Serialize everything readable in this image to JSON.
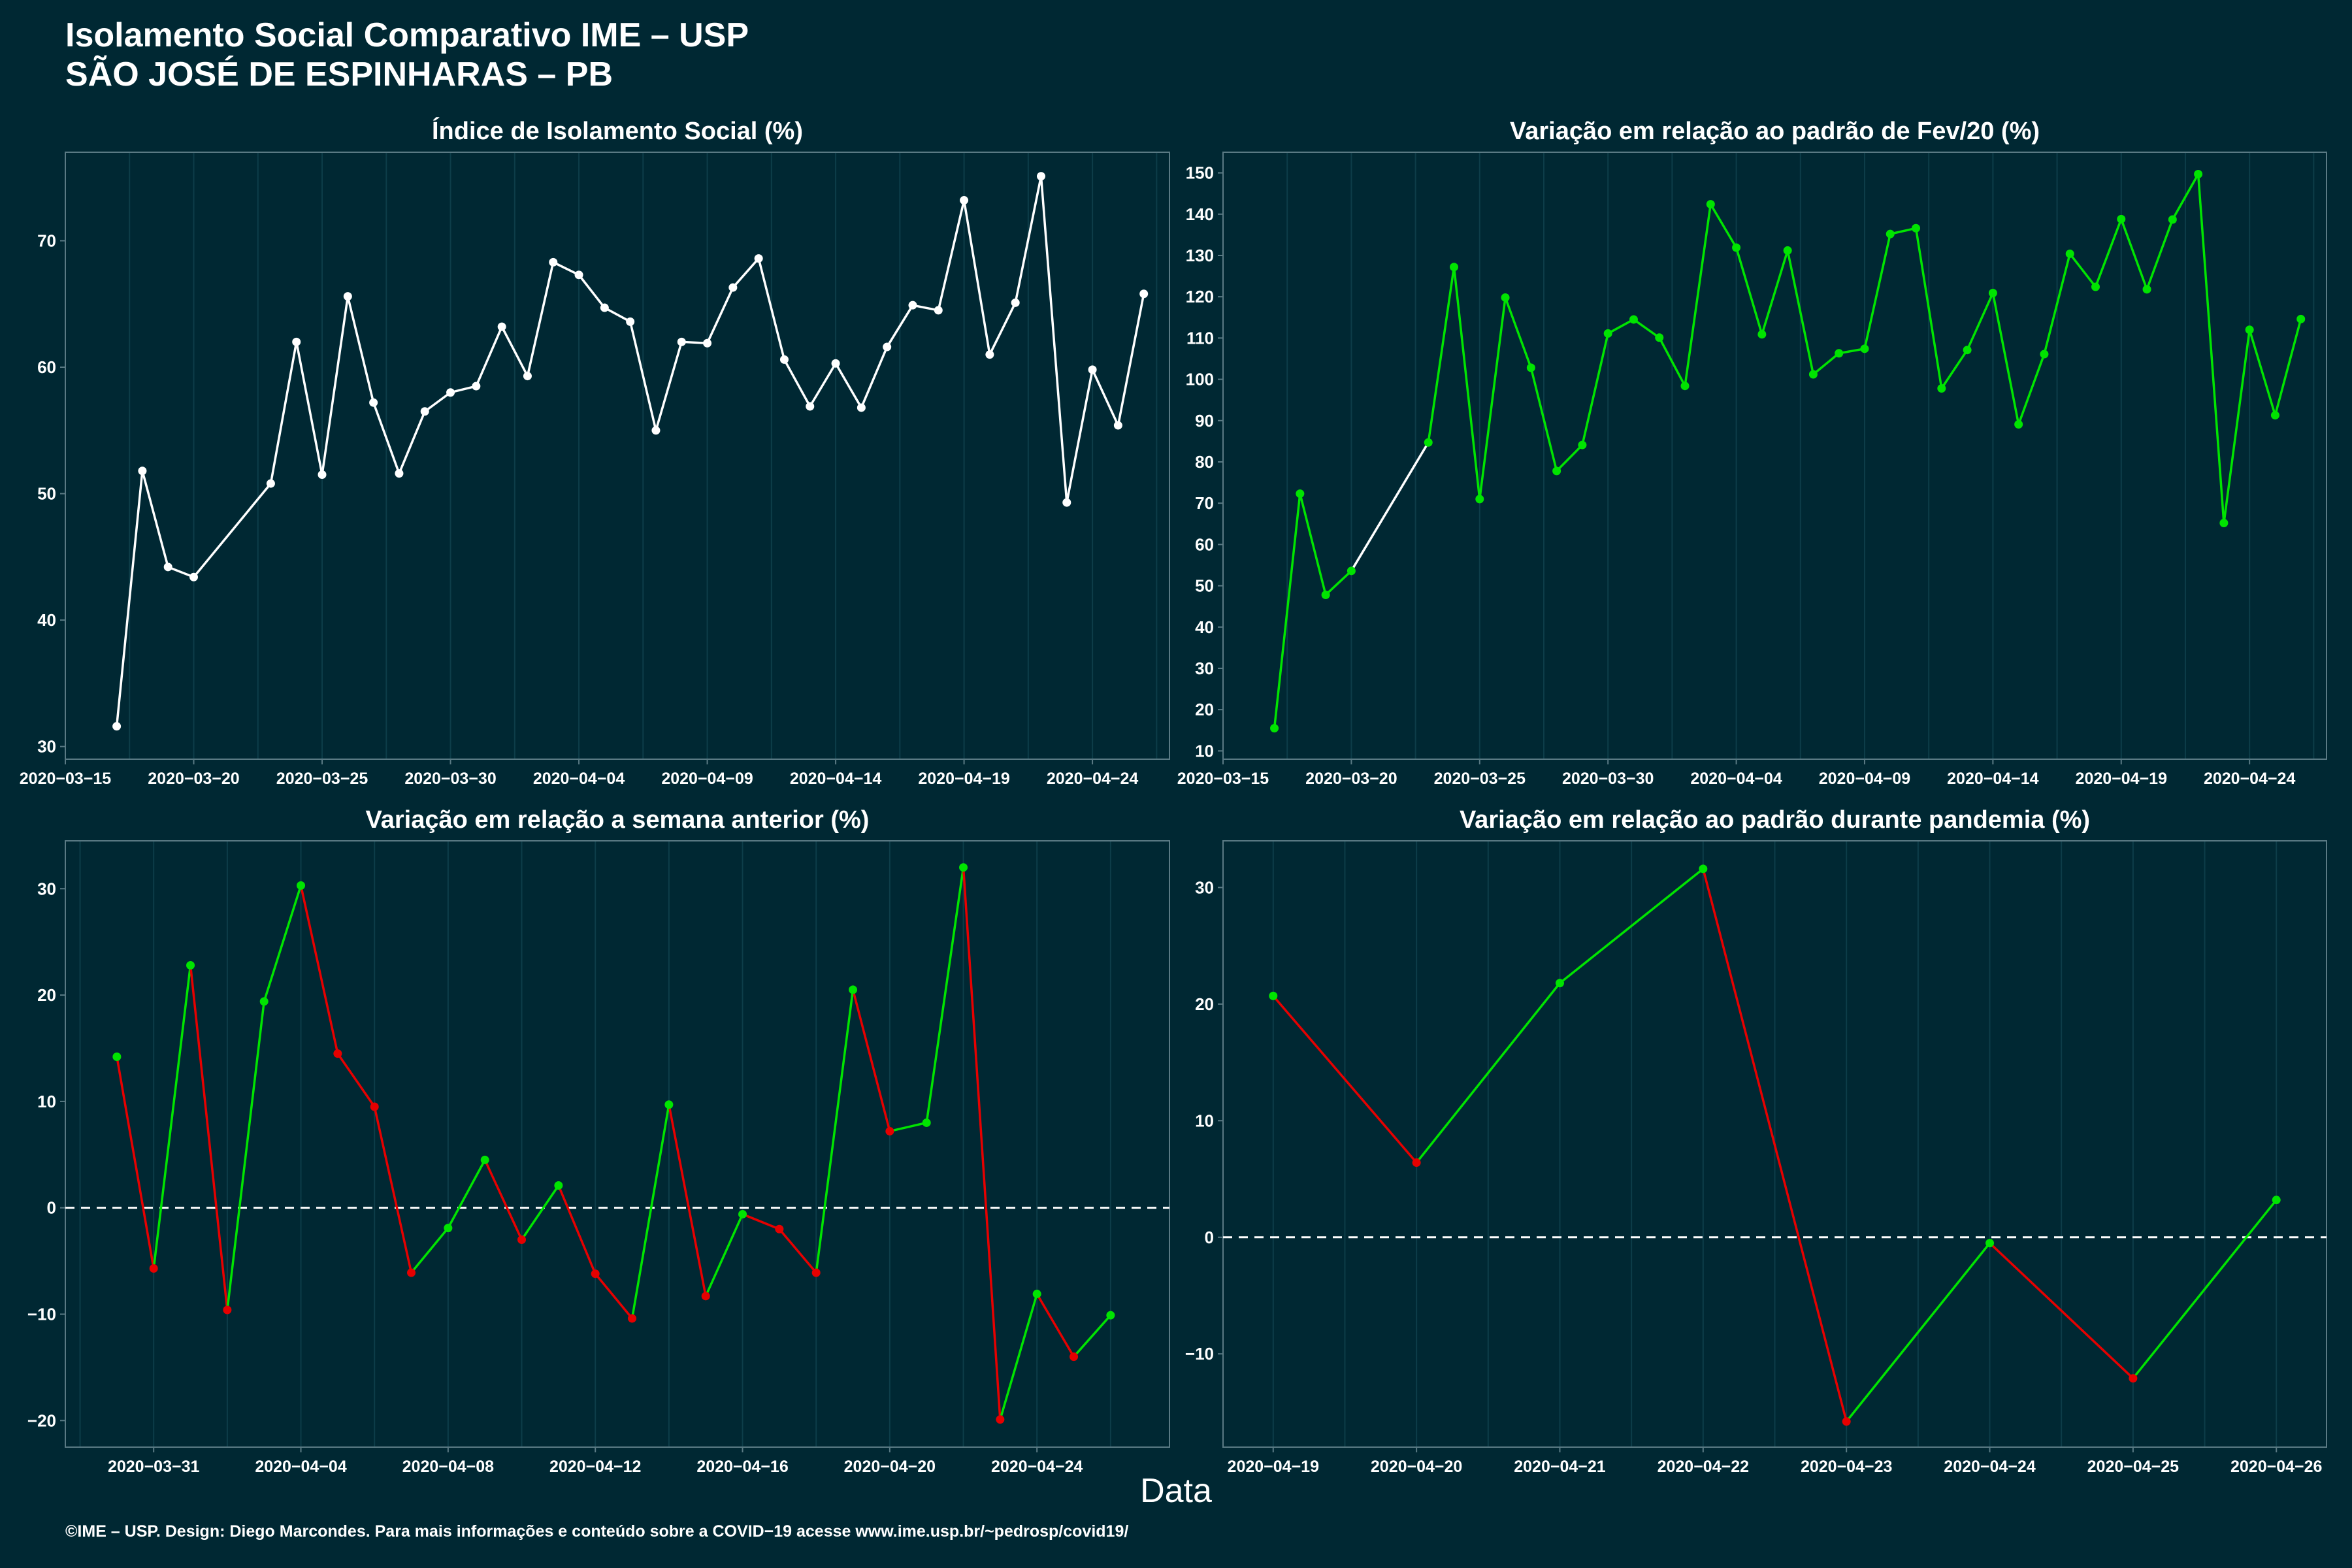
{
  "title": {
    "line1": "Isolamento Social Comparativo IME – USP",
    "line2": "SÃO JOSÉ DE ESPINHARAS – PB"
  },
  "x_axis_title": "Data",
  "footer": "©IME – USP. Design: Diego Marcondes. Para mais informações e conteúdo sobre a COVID−19 acesse www.ime.usp.br/~pedrosp/covid19/",
  "colors": {
    "background": "#002833",
    "panel_border": "#5a7a84",
    "gridline": "#0d3d49",
    "text": "#ffffff",
    "white_series": "#ffffff",
    "positive": "#00e400",
    "negative": "#e60000",
    "zero_line": "#ffffff"
  },
  "chart_data": [
    {
      "type": "line",
      "title": "Índice de Isolamento Social (%)",
      "color_mode": "single",
      "color": "#ffffff",
      "x_type": "date",
      "xlim": [
        "2020-03-15",
        "2020-04-27"
      ],
      "ylim": [
        29,
        77
      ],
      "x_ticks": [
        "2020-03-15",
        "2020-03-20",
        "2020-03-25",
        "2020-03-30",
        "2020-04-04",
        "2020-04-09",
        "2020-04-14",
        "2020-04-19",
        "2020-04-24"
      ],
      "y_ticks": [
        30,
        40,
        50,
        60,
        70
      ],
      "points": [
        {
          "x": "2020-03-17",
          "y": 31.6
        },
        {
          "x": "2020-03-18",
          "y": 51.8
        },
        {
          "x": "2020-03-19",
          "y": 44.2
        },
        {
          "x": "2020-03-20",
          "y": 43.4
        },
        {
          "x": "2020-03-23",
          "y": 50.8
        },
        {
          "x": "2020-03-24",
          "y": 62.0
        },
        {
          "x": "2020-03-25",
          "y": 51.5
        },
        {
          "x": "2020-03-26",
          "y": 65.6
        },
        {
          "x": "2020-03-27",
          "y": 57.2
        },
        {
          "x": "2020-03-28",
          "y": 51.6
        },
        {
          "x": "2020-03-29",
          "y": 56.5
        },
        {
          "x": "2020-03-30",
          "y": 58.0
        },
        {
          "x": "2020-03-31",
          "y": 58.5
        },
        {
          "x": "2020-04-01",
          "y": 63.2
        },
        {
          "x": "2020-04-02",
          "y": 59.3
        },
        {
          "x": "2020-04-03",
          "y": 68.3
        },
        {
          "x": "2020-04-04",
          "y": 67.3
        },
        {
          "x": "2020-04-05",
          "y": 64.7
        },
        {
          "x": "2020-04-06",
          "y": 63.6
        },
        {
          "x": "2020-04-07",
          "y": 55.0
        },
        {
          "x": "2020-04-08",
          "y": 62.0
        },
        {
          "x": "2020-04-09",
          "y": 61.9
        },
        {
          "x": "2020-04-10",
          "y": 66.3
        },
        {
          "x": "2020-04-11",
          "y": 68.6
        },
        {
          "x": "2020-04-12",
          "y": 60.6
        },
        {
          "x": "2020-04-13",
          "y": 56.9
        },
        {
          "x": "2020-04-14",
          "y": 60.3
        },
        {
          "x": "2020-04-15",
          "y": 56.8
        },
        {
          "x": "2020-04-16",
          "y": 61.6
        },
        {
          "x": "2020-04-17",
          "y": 64.9
        },
        {
          "x": "2020-04-18",
          "y": 64.5
        },
        {
          "x": "2020-04-19",
          "y": 73.2
        },
        {
          "x": "2020-04-20",
          "y": 61.0
        },
        {
          "x": "2020-04-21",
          "y": 65.1
        },
        {
          "x": "2020-04-22",
          "y": 75.1
        },
        {
          "x": "2020-04-23",
          "y": 49.3
        },
        {
          "x": "2020-04-24",
          "y": 59.8
        },
        {
          "x": "2020-04-25",
          "y": 55.4
        },
        {
          "x": "2020-04-26",
          "y": 65.8
        }
      ]
    },
    {
      "type": "line",
      "title": "Variação em relação ao padrão de Fev/20 (%)",
      "color_mode": "green_with_white_gap",
      "color": "#00e400",
      "gap_color": "#ffffff",
      "x_type": "date",
      "xlim": [
        "2020-03-15",
        "2020-04-27"
      ],
      "ylim": [
        8,
        155
      ],
      "x_ticks": [
        "2020-03-15",
        "2020-03-20",
        "2020-03-25",
        "2020-03-30",
        "2020-04-04",
        "2020-04-09",
        "2020-04-14",
        "2020-04-19",
        "2020-04-24"
      ],
      "y_ticks": [
        10,
        20,
        30,
        40,
        50,
        60,
        70,
        80,
        90,
        100,
        110,
        120,
        130,
        140,
        150
      ],
      "points": [
        {
          "x": "2020-03-17",
          "y": 15.5
        },
        {
          "x": "2020-03-18",
          "y": 72.3
        },
        {
          "x": "2020-03-19",
          "y": 47.8
        },
        {
          "x": "2020-03-20",
          "y": 53.6
        },
        {
          "x": "2020-03-23",
          "y": 84.7
        },
        {
          "x": "2020-03-24",
          "y": 127.2
        },
        {
          "x": "2020-03-25",
          "y": 71.0
        },
        {
          "x": "2020-03-26",
          "y": 119.8
        },
        {
          "x": "2020-03-27",
          "y": 102.8
        },
        {
          "x": "2020-03-28",
          "y": 77.8
        },
        {
          "x": "2020-03-29",
          "y": 84.1
        },
        {
          "x": "2020-03-30",
          "y": 111.1
        },
        {
          "x": "2020-03-31",
          "y": 114.5
        },
        {
          "x": "2020-04-01",
          "y": 110.1
        },
        {
          "x": "2020-04-02",
          "y": 98.4
        },
        {
          "x": "2020-04-03",
          "y": 142.4
        },
        {
          "x": "2020-04-04",
          "y": 131.9
        },
        {
          "x": "2020-04-05",
          "y": 110.9
        },
        {
          "x": "2020-04-06",
          "y": 131.2
        },
        {
          "x": "2020-04-07",
          "y": 101.2
        },
        {
          "x": "2020-04-08",
          "y": 106.3
        },
        {
          "x": "2020-04-09",
          "y": 107.4
        },
        {
          "x": "2020-04-10",
          "y": 135.2
        },
        {
          "x": "2020-04-11",
          "y": 136.6
        },
        {
          "x": "2020-04-12",
          "y": 97.8
        },
        {
          "x": "2020-04-13",
          "y": 107.1
        },
        {
          "x": "2020-04-14",
          "y": 120.9
        },
        {
          "x": "2020-04-15",
          "y": 89.1
        },
        {
          "x": "2020-04-16",
          "y": 106.1
        },
        {
          "x": "2020-04-17",
          "y": 130.4
        },
        {
          "x": "2020-04-18",
          "y": 122.4
        },
        {
          "x": "2020-04-19",
          "y": 138.8
        },
        {
          "x": "2020-04-20",
          "y": 121.8
        },
        {
          "x": "2020-04-21",
          "y": 138.7
        },
        {
          "x": "2020-04-22",
          "y": 149.7
        },
        {
          "x": "2020-04-23",
          "y": 65.2
        },
        {
          "x": "2020-04-24",
          "y": 112.0
        },
        {
          "x": "2020-04-25",
          "y": 91.3
        },
        {
          "x": "2020-04-26",
          "y": 114.6
        }
      ]
    },
    {
      "type": "line",
      "title": "Variação em relação a semana anterior (%)",
      "color_mode": "trend",
      "x_type": "date",
      "xlim": [
        "2020-03-28.6",
        "2020-04-27.6"
      ],
      "ylim": [
        -22.5,
        34.5
      ],
      "reference_line": 0,
      "x_ticks": [
        "2020-03-31",
        "2020-04-04",
        "2020-04-08",
        "2020-04-12",
        "2020-04-16",
        "2020-04-20",
        "2020-04-24"
      ],
      "y_ticks": [
        -20,
        -10,
        0,
        10,
        20,
        30
      ],
      "points": [
        {
          "x": "2020-03-30",
          "y": 14.2
        },
        {
          "x": "2020-03-31",
          "y": -5.7
        },
        {
          "x": "2020-04-01",
          "y": 22.8
        },
        {
          "x": "2020-04-02",
          "y": -9.6
        },
        {
          "x": "2020-04-03",
          "y": 19.4
        },
        {
          "x": "2020-04-04",
          "y": 30.3
        },
        {
          "x": "2020-04-05",
          "y": 14.5
        },
        {
          "x": "2020-04-06",
          "y": 9.5
        },
        {
          "x": "2020-04-07",
          "y": -6.1
        },
        {
          "x": "2020-04-08",
          "y": -1.9
        },
        {
          "x": "2020-04-09",
          "y": 4.5
        },
        {
          "x": "2020-04-10",
          "y": -3.0
        },
        {
          "x": "2020-04-11",
          "y": 2.1
        },
        {
          "x": "2020-04-12",
          "y": -6.2
        },
        {
          "x": "2020-04-13",
          "y": -10.4
        },
        {
          "x": "2020-04-14",
          "y": 9.7
        },
        {
          "x": "2020-04-15",
          "y": -8.3
        },
        {
          "x": "2020-04-16",
          "y": -0.6
        },
        {
          "x": "2020-04-17",
          "y": -2.0
        },
        {
          "x": "2020-04-18",
          "y": -6.1
        },
        {
          "x": "2020-04-19",
          "y": 20.5
        },
        {
          "x": "2020-04-20",
          "y": 7.2
        },
        {
          "x": "2020-04-21",
          "y": 8.0
        },
        {
          "x": "2020-04-22",
          "y": 32.0
        },
        {
          "x": "2020-04-23",
          "y": -19.9
        },
        {
          "x": "2020-04-24",
          "y": -8.1
        },
        {
          "x": "2020-04-25",
          "y": -14.0
        },
        {
          "x": "2020-04-26",
          "y": -10.1
        }
      ]
    },
    {
      "type": "line",
      "title": "Variação em relação ao padrão durante pandemia (%)",
      "color_mode": "trend",
      "x_type": "date",
      "xlim": [
        "2020-04-18.65",
        "2020-04-26.35"
      ],
      "ylim": [
        -18,
        34
      ],
      "reference_line": 0,
      "x_ticks": [
        "2020-04-19",
        "2020-04-20",
        "2020-04-21",
        "2020-04-22",
        "2020-04-23",
        "2020-04-24",
        "2020-04-25",
        "2020-04-26"
      ],
      "y_ticks": [
        -10,
        0,
        10,
        20,
        30
      ],
      "points": [
        {
          "x": "2020-04-19",
          "y": 20.7
        },
        {
          "x": "2020-04-20",
          "y": 6.4
        },
        {
          "x": "2020-04-21",
          "y": 21.8
        },
        {
          "x": "2020-04-22",
          "y": 31.6
        },
        {
          "x": "2020-04-23",
          "y": -15.8
        },
        {
          "x": "2020-04-24",
          "y": -0.5
        },
        {
          "x": "2020-04-25",
          "y": -12.1
        },
        {
          "x": "2020-04-26",
          "y": 3.2
        }
      ]
    }
  ]
}
